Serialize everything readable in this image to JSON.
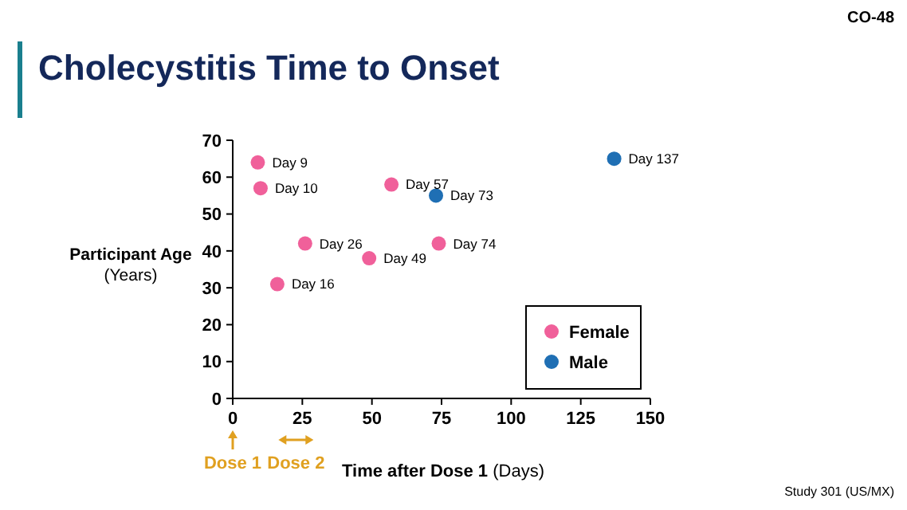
{
  "chart_data": {
    "type": "scatter",
    "title": "Cholecystitis Time to Onset",
    "xlabel": "Time after Dose 1 (Days)",
    "ylabel": "Participant Age (Years)",
    "xlim": [
      0,
      150
    ],
    "xticks": [
      0,
      25,
      50,
      75,
      100,
      125,
      150
    ],
    "ylim": [
      0,
      70
    ],
    "yticks": [
      0,
      10,
      20,
      30,
      40,
      50,
      60,
      70
    ],
    "series": [
      {
        "name": "Female",
        "color": "#f0609a",
        "x": [
          9,
          10,
          26,
          16,
          49,
          57,
          74
        ],
        "values": [
          64,
          57,
          42,
          31,
          38,
          58,
          42
        ]
      },
      {
        "name": "Male",
        "color": "#1f6fb4",
        "x": [
          73,
          137
        ],
        "values": [
          55,
          65
        ]
      }
    ],
    "marker": "circle",
    "legend": "bottom right",
    "grid": false,
    "annotations": [
      "CO-48",
      "Study 301 (US/MX)",
      {
        "text": "Day 9",
        "x": 9,
        "y": 64
      },
      {
        "text": "Day 10",
        "x": 10,
        "y": 57
      },
      {
        "text": "Day 26",
        "x": 26,
        "y": 42
      },
      {
        "text": "Day 16",
        "x": 16,
        "y": 31
      },
      {
        "text": "Day 49",
        "x": 49,
        "y": 38
      },
      {
        "text": "Day 57",
        "x": 57,
        "y": 58
      },
      {
        "text": "Day 74",
        "x": 74,
        "y": 42
      },
      {
        "text": "Day 73",
        "x": 73,
        "y": 55
      },
      {
        "text": "Day 137",
        "x": 137,
        "y": 65
      },
      "Dose 1",
      "Dose 2"
    ]
  }
}
